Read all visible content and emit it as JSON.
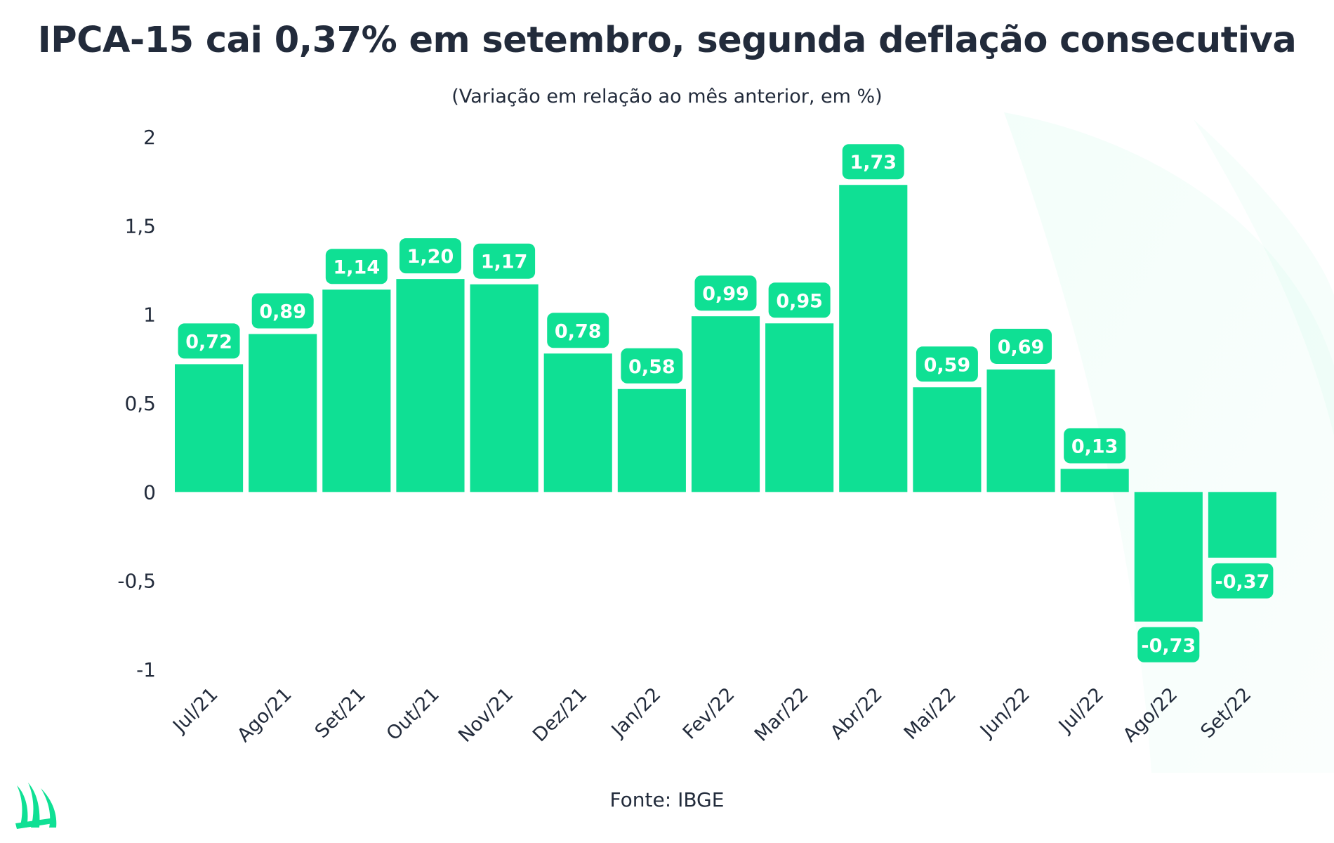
{
  "chart_data": {
    "type": "bar",
    "title": "IPCA-15 cai 0,37% em setembro, segunda deflação consecutiva",
    "subtitle": "(Variação em relação ao mês anterior, em %)",
    "source": "Fonte: IBGE",
    "categories": [
      "Jul/21",
      "Ago/21",
      "Set/21",
      "Out/21",
      "Nov/21",
      "Dez/21",
      "Jan/22",
      "Fev/22",
      "Mar/22",
      "Abr/22",
      "Mai/22",
      "Jun/22",
      "Jul/22",
      "Ago/22",
      "Set/22"
    ],
    "values": [
      0.72,
      0.89,
      1.14,
      1.2,
      1.17,
      0.78,
      0.58,
      0.99,
      0.95,
      1.73,
      0.59,
      0.69,
      0.13,
      -0.73,
      -0.37
    ],
    "value_labels": [
      "0,72",
      "0,89",
      "1,14",
      "1,20",
      "1,17",
      "0,78",
      "0,58",
      "0,99",
      "0,95",
      "1,73",
      "0,59",
      "0,69",
      "0,13",
      "-0,73",
      "-0,37"
    ],
    "yticks": [
      2,
      1.5,
      1,
      0.5,
      0,
      -0.5,
      -1
    ],
    "ytick_labels": [
      "2",
      "1,5",
      "1",
      "0,5",
      "0",
      "-0,5",
      "-1"
    ],
    "ylim": [
      -1,
      2
    ],
    "grid": false,
    "legend": "none",
    "bar_color": "#0fe094",
    "label_color": "#ffffff",
    "text_color": "#222b3b"
  },
  "logo": {
    "icon": "brand-leaf-logo-icon"
  }
}
